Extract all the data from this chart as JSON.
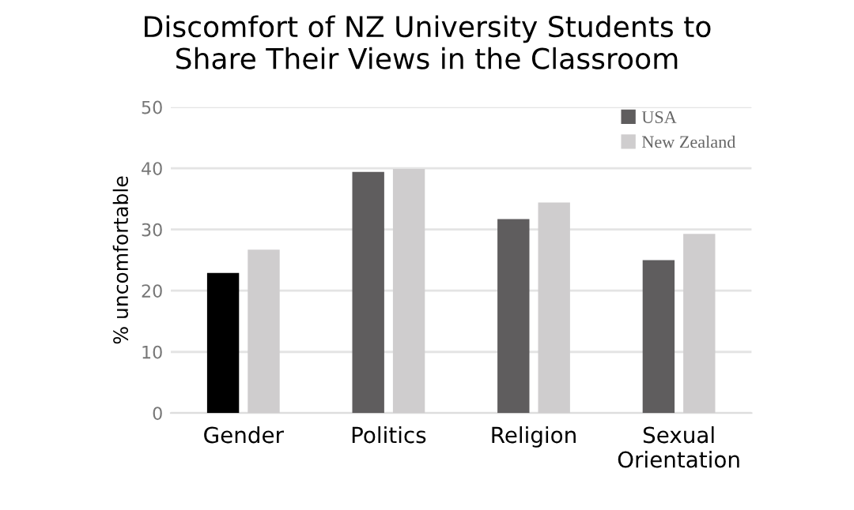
{
  "chart_data": {
    "type": "bar",
    "title": "Discomfort of NZ University Students to\nShare Their Views in the Classroom",
    "ylabel": "% uncomfortable",
    "categories": [
      "Gender",
      "Politics",
      "Religion",
      "Sexual\nOrientation"
    ],
    "series": [
      {
        "name": "USA",
        "color": "#5f5d5e",
        "colors": [
          "#000000",
          "#5f5d5e",
          "#5f5d5e",
          "#5f5d5e"
        ],
        "values": [
          22.9,
          39.4,
          31.7,
          25.0
        ]
      },
      {
        "name": "New Zealand",
        "color": "#cfcdce",
        "values": [
          26.7,
          39.9,
          34.4,
          29.3
        ]
      }
    ],
    "ylim": [
      0,
      50
    ],
    "yticks": [
      0,
      10,
      20,
      30,
      40,
      50
    ],
    "grid": "y",
    "legend": "top right"
  }
}
